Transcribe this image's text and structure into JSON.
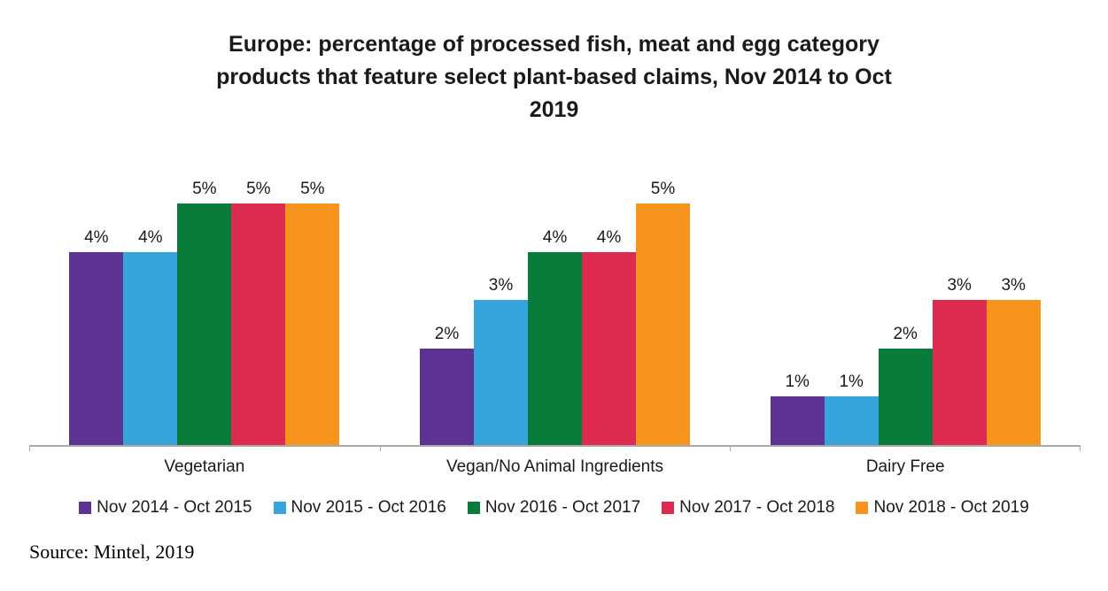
{
  "header": {
    "title_display": "Europe: percentage of processed fish, meat and egg category\nproducts that feature select plant-based claims, Nov 2014 to Oct\n2019"
  },
  "source_note": "Source: Mintel, 2019",
  "colors": {
    "background": "#ffffff",
    "axis": "#a9a9a9",
    "text": "#1a1a1a"
  },
  "chart_data": {
    "type": "bar",
    "title": "Europe: percentage of processed fish, meat and egg category products that feature select plant-based claims, Nov 2014 to Oct 2019",
    "categories": [
      "Vegetarian",
      "Vegan/No Animal Ingredients",
      "Dairy Free"
    ],
    "series": [
      {
        "name": "Nov 2014 - Oct 2015",
        "color": "#5C3292",
        "values": [
          4,
          2,
          1
        ]
      },
      {
        "name": "Nov 2015 - Oct 2016",
        "color": "#36A5DB",
        "values": [
          4,
          3,
          1
        ]
      },
      {
        "name": "Nov 2016 - Oct 2017",
        "color": "#097C3B",
        "values": [
          5,
          4,
          2
        ]
      },
      {
        "name": "Nov 2017 - Oct 2018",
        "color": "#DC2B4E",
        "values": [
          5,
          4,
          3
        ]
      },
      {
        "name": "Nov 2018 - Oct 2019",
        "color": "#F7941E",
        "values": [
          5,
          5,
          3
        ]
      }
    ],
    "value_suffix": "%",
    "data_labels": true,
    "xlabel": "",
    "ylabel": "",
    "ylim": [
      0,
      6.3
    ],
    "y_axis_visible": false,
    "gridlines": false,
    "legend_position": "bottom"
  }
}
